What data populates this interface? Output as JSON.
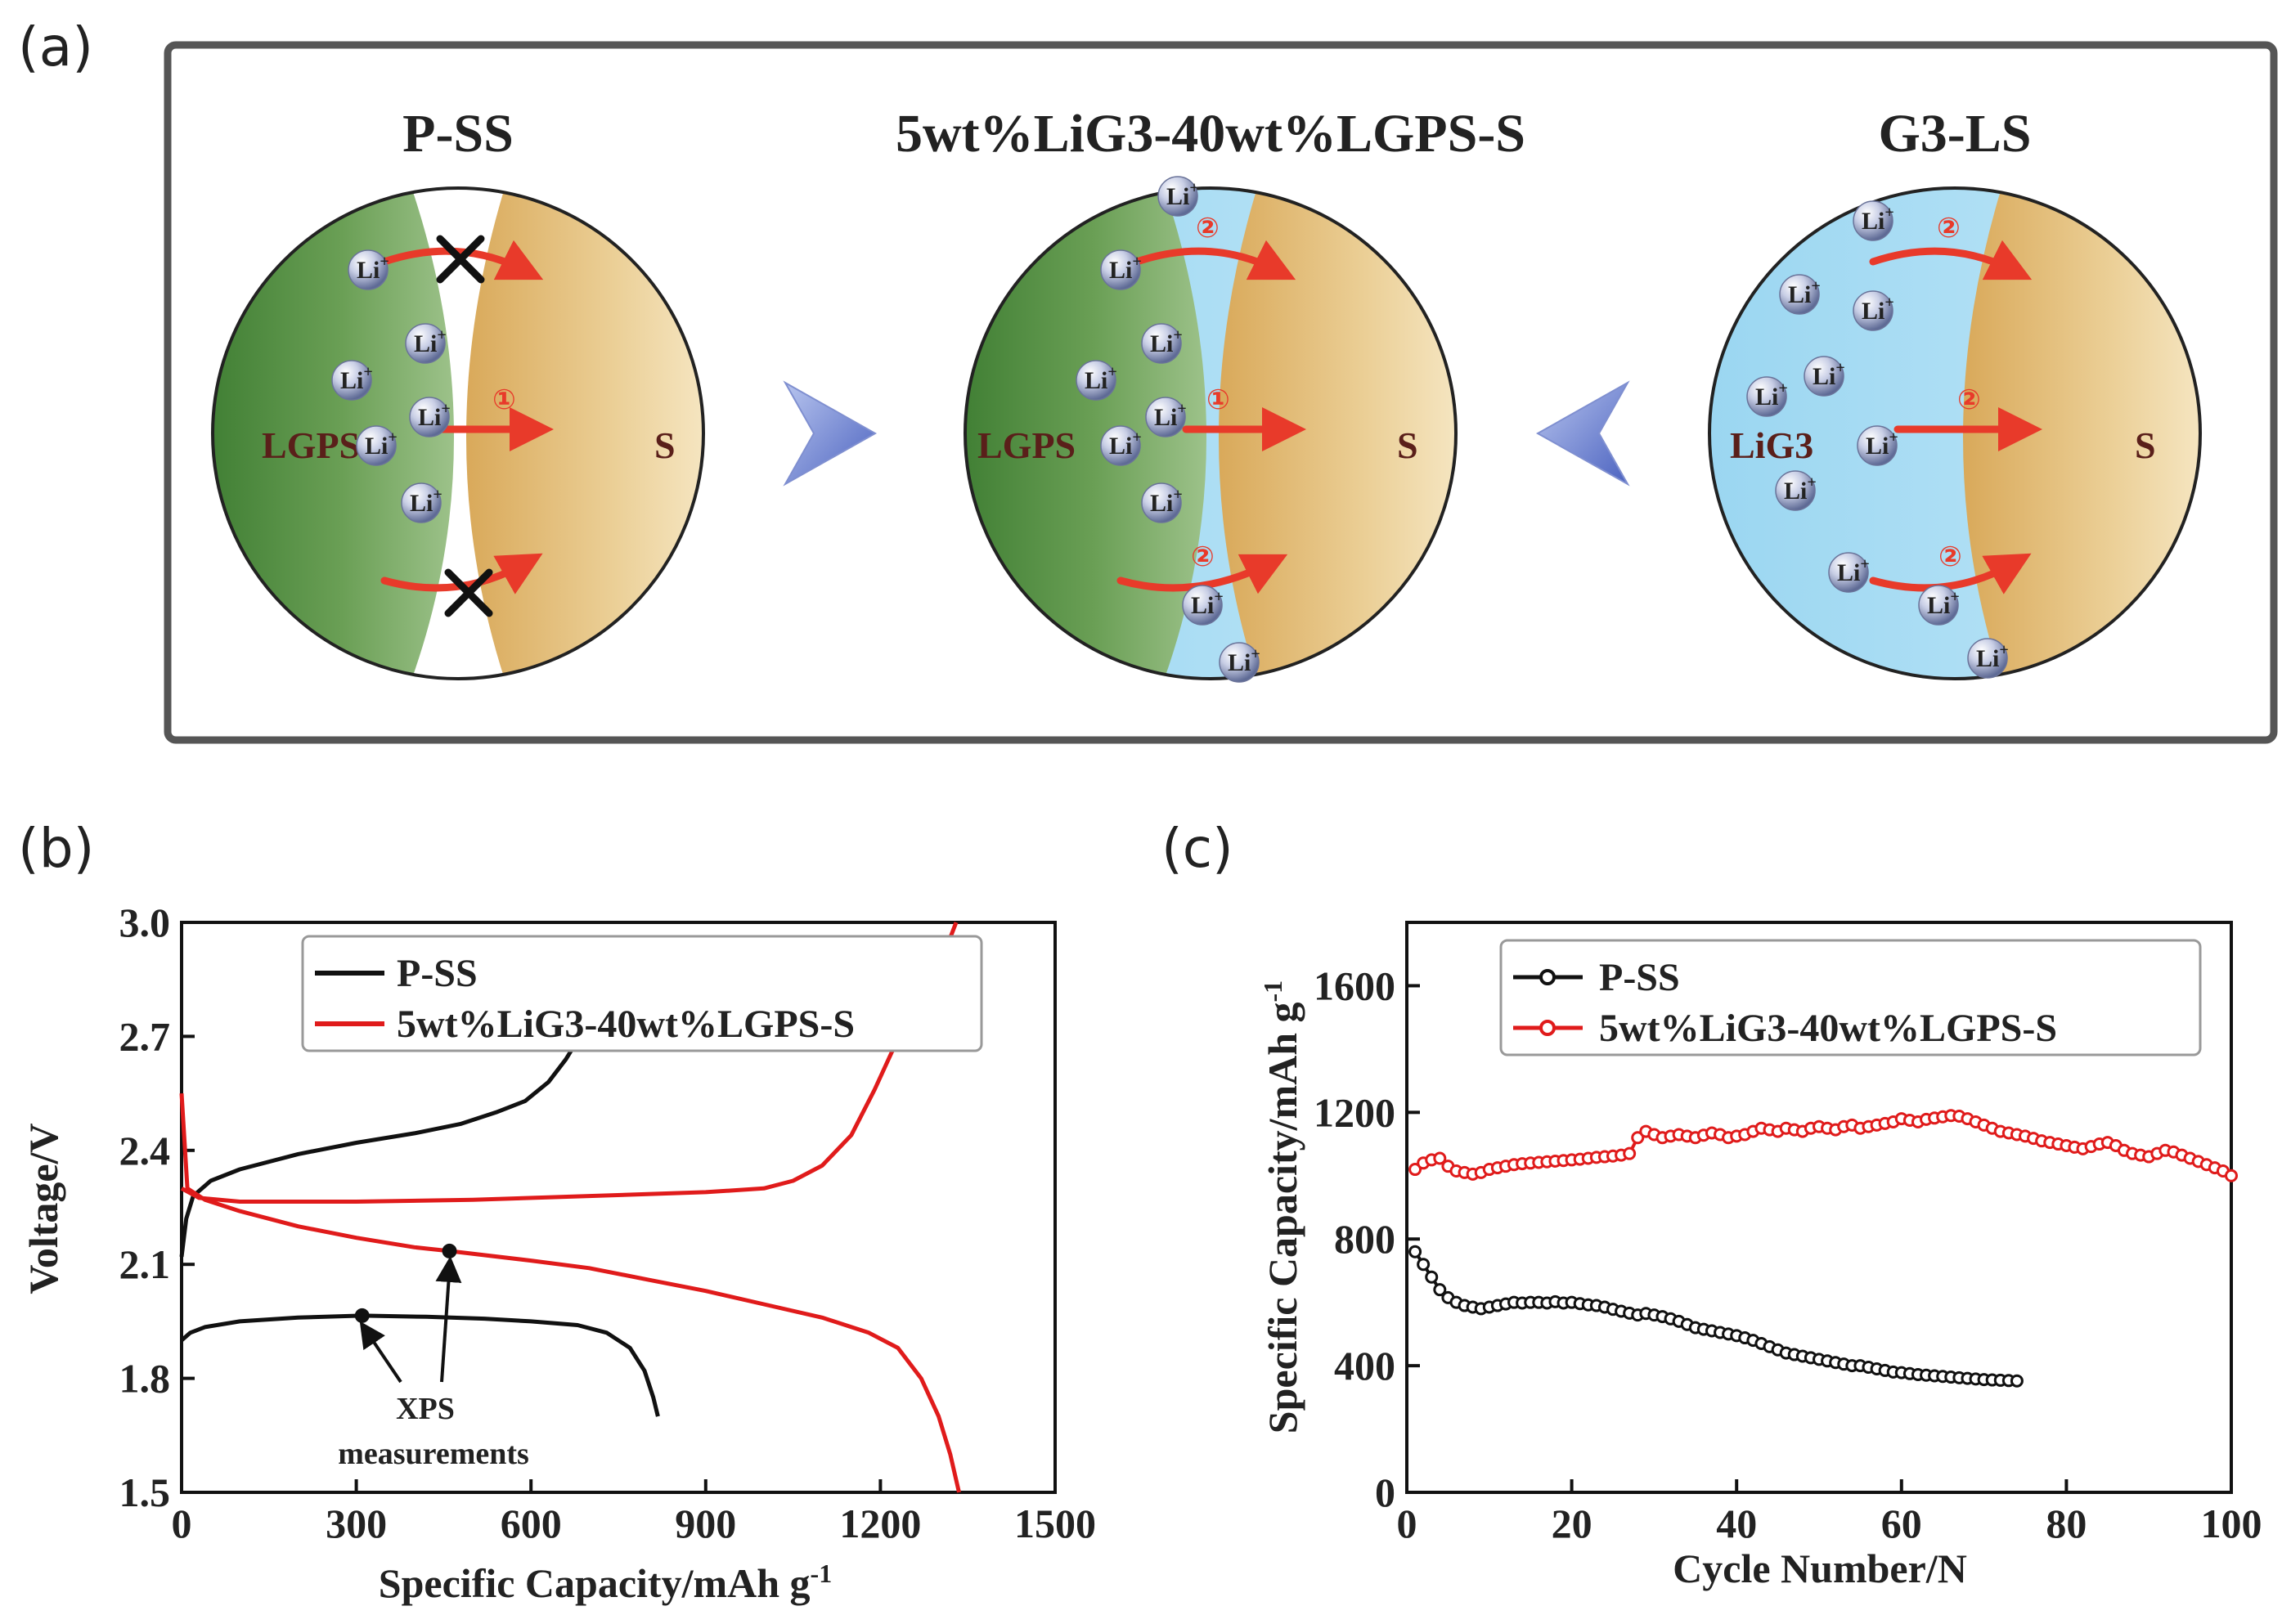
{
  "panels": {
    "a": {
      "label": "(a)",
      "circles": [
        {
          "title": "P-SS",
          "left_label": "LGPS",
          "right_label": "S",
          "path_marks": [
            "①"
          ]
        },
        {
          "title": "5wt%LiG3-40wt%LGPS-S",
          "left_label": "LGPS",
          "right_label": "S",
          "path_marks": [
            "①",
            "②",
            "②"
          ]
        },
        {
          "title": "G3-LS",
          "left_label": "LiG3",
          "right_label": "S",
          "path_marks": [
            "②",
            "②",
            "②"
          ]
        }
      ],
      "ion_label": "Li",
      "ion_superscript": "+",
      "colors": {
        "lgps": "#4f8a3c",
        "sulfur": "#e3bc76",
        "lig3": "#8fd0ee",
        "arrow": "#e83a2a"
      }
    },
    "b": {
      "label": "(b)"
    },
    "c": {
      "label": "(c)"
    }
  },
  "chart_data": [
    {
      "panel": "b",
      "type": "line",
      "xlabel_main": "Specific Capacity/mAh g",
      "xlabel_sup": "-1",
      "ylabel": "Voltage/V",
      "xlim": [
        0,
        1500
      ],
      "ylim": [
        1.5,
        3.0
      ],
      "xticks": [
        "0",
        "300",
        "600",
        "900",
        "1200",
        "1500"
      ],
      "yticks": [
        "1.5",
        "1.8",
        "2.1",
        "2.4",
        "2.7",
        "3.0"
      ],
      "legend": [
        "P-SS",
        "5wt%LiG3-40wt%LGPS-S"
      ],
      "annotation": [
        "XPS",
        "measurements"
      ],
      "series": [
        {
          "name": "P-SS discharge",
          "color": "#111111",
          "points": [
            [
              0,
              1.9
            ],
            [
              15,
              1.92
            ],
            [
              40,
              1.935
            ],
            [
              100,
              1.95
            ],
            [
              200,
              1.96
            ],
            [
              310,
              1.965
            ],
            [
              420,
              1.962
            ],
            [
              520,
              1.957
            ],
            [
              600,
              1.95
            ],
            [
              680,
              1.94
            ],
            [
              730,
              1.92
            ],
            [
              770,
              1.88
            ],
            [
              795,
              1.82
            ],
            [
              810,
              1.75
            ],
            [
              818,
              1.7
            ]
          ]
        },
        {
          "name": "P-SS charge",
          "color": "#111111",
          "points": [
            [
              0,
              2.12
            ],
            [
              8,
              2.22
            ],
            [
              20,
              2.28
            ],
            [
              50,
              2.32
            ],
            [
              100,
              2.35
            ],
            [
              200,
              2.39
            ],
            [
              300,
              2.42
            ],
            [
              400,
              2.445
            ],
            [
              480,
              2.47
            ],
            [
              540,
              2.5
            ],
            [
              590,
              2.53
            ],
            [
              630,
              2.58
            ],
            [
              660,
              2.64
            ],
            [
              680,
              2.69
            ]
          ]
        },
        {
          "name": "5wt%LiG3-40wt%LGPS-S discharge",
          "color": "#e01b1b",
          "points": [
            [
              0,
              2.55
            ],
            [
              10,
              2.3
            ],
            [
              40,
              2.27
            ],
            [
              100,
              2.24
            ],
            [
              200,
              2.2
            ],
            [
              300,
              2.17
            ],
            [
              400,
              2.145
            ],
            [
              460,
              2.135
            ],
            [
              600,
              2.11
            ],
            [
              700,
              2.09
            ],
            [
              800,
              2.06
            ],
            [
              900,
              2.03
            ],
            [
              1000,
              1.995
            ],
            [
              1100,
              1.96
            ],
            [
              1180,
              1.92
            ],
            [
              1230,
              1.88
            ],
            [
              1270,
              1.8
            ],
            [
              1300,
              1.7
            ],
            [
              1320,
              1.6
            ],
            [
              1335,
              1.5
            ]
          ]
        },
        {
          "name": "5wt%LiG3-40wt%LGPS-S charge",
          "color": "#e01b1b",
          "points": [
            [
              0,
              2.3
            ],
            [
              30,
              2.275
            ],
            [
              100,
              2.265
            ],
            [
              300,
              2.265
            ],
            [
              500,
              2.27
            ],
            [
              700,
              2.28
            ],
            [
              900,
              2.29
            ],
            [
              1000,
              2.3
            ],
            [
              1050,
              2.32
            ],
            [
              1100,
              2.36
            ],
            [
              1150,
              2.44
            ],
            [
              1190,
              2.56
            ],
            [
              1220,
              2.66
            ],
            [
              1250,
              2.74
            ],
            [
              1280,
              2.82
            ],
            [
              1310,
              2.92
            ],
            [
              1330,
              3.0
            ]
          ]
        }
      ],
      "markers": [
        [
          310,
          1.965
        ],
        [
          460,
          2.135
        ]
      ]
    },
    {
      "panel": "c",
      "type": "scatter",
      "xlabel": "Cycle Number/N",
      "ylabel_main": "Specific Capacity/mAh g",
      "ylabel_sup": "-1",
      "xlim": [
        0,
        100
      ],
      "ylim": [
        0,
        1800
      ],
      "xticks": [
        "0",
        "20",
        "40",
        "60",
        "80",
        "100"
      ],
      "yticks": [
        "0",
        "400",
        "800",
        "1200",
        "1600"
      ],
      "legend": [
        "P-SS",
        "5wt%LiG3-40wt%LGPS-S"
      ],
      "series": [
        {
          "name": "P-SS",
          "color": "#111111",
          "values": [
            760,
            720,
            680,
            640,
            615,
            600,
            590,
            585,
            580,
            585,
            590,
            595,
            600,
            598,
            600,
            600,
            598,
            602,
            598,
            600,
            596,
            592,
            590,
            585,
            578,
            572,
            566,
            560,
            565,
            560,
            555,
            548,
            540,
            530,
            520,
            515,
            510,
            505,
            500,
            495,
            488,
            480,
            470,
            460,
            450,
            440,
            435,
            430,
            425,
            420,
            415,
            410,
            405,
            400,
            400,
            395,
            390,
            385,
            380,
            378,
            375,
            372,
            370,
            368,
            366,
            364,
            362,
            360,
            358,
            356,
            355,
            354,
            353,
            352
          ]
        },
        {
          "name": "5wt%LiG3-40wt%LGPS-S",
          "color": "#e01b1b",
          "values": [
            1020,
            1040,
            1050,
            1055,
            1030,
            1015,
            1010,
            1005,
            1010,
            1020,
            1025,
            1030,
            1035,
            1038,
            1040,
            1042,
            1044,
            1046,
            1048,
            1050,
            1052,
            1055,
            1058,
            1060,
            1062,
            1065,
            1070,
            1120,
            1140,
            1130,
            1120,
            1125,
            1130,
            1125,
            1120,
            1128,
            1135,
            1130,
            1120,
            1125,
            1130,
            1140,
            1150,
            1145,
            1140,
            1150,
            1145,
            1140,
            1150,
            1155,
            1150,
            1145,
            1155,
            1160,
            1150,
            1155,
            1160,
            1165,
            1170,
            1180,
            1175,
            1170,
            1178,
            1182,
            1186,
            1190,
            1188,
            1180,
            1170,
            1160,
            1150,
            1140,
            1135,
            1130,
            1125,
            1118,
            1110,
            1105,
            1100,
            1095,
            1090,
            1085,
            1092,
            1100,
            1105,
            1095,
            1080,
            1070,
            1065,
            1060,
            1070,
            1080,
            1075,
            1065,
            1055,
            1045,
            1035,
            1025,
            1015,
            1000
          ]
        }
      ]
    }
  ]
}
